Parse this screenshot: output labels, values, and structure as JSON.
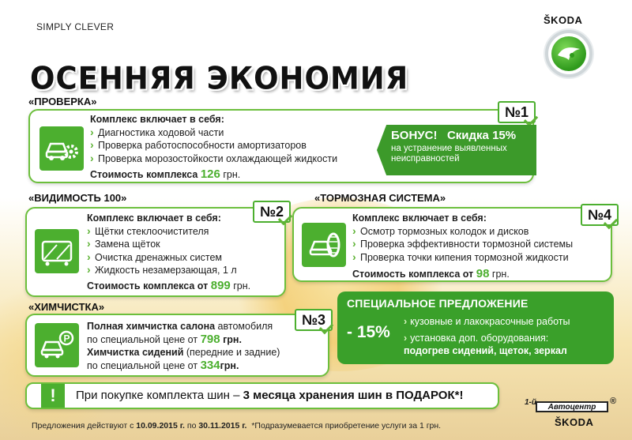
{
  "header": {
    "slogan": "SIMPLY CLEVER",
    "brand": "ŠKODA",
    "title": "ОСЕННЯЯ ЭКОНОМИЯ"
  },
  "offers": [
    {
      "title": "«ПРОВЕРКА»",
      "number": "№1",
      "includes_label": "Комплекс включает в себя:",
      "items": [
        "Диагностика ходовой части",
        "Проверка работоспособности амортизаторов",
        "Проверка морозостойкости охлаждающей жидкости"
      ],
      "price_label": "Стоимость комплекса",
      "price_value": "126",
      "price_unit": "грн.",
      "icon": "car-gear-icon"
    },
    {
      "title": "«ВИДИМОСТЬ 100»",
      "number": "№2",
      "includes_label": "Комплекс включает в себя:",
      "items": [
        "Щётки стеклоочистителя",
        "Замена щёток",
        "Очистка дренажных систем",
        "Жидкость незамерзающая, 1 л"
      ],
      "price_label": "Стоимость комплекса от",
      "price_value": "899",
      "price_unit": "грн.",
      "icon": "windshield-icon"
    },
    {
      "title": "«ТОРМОЗНАЯ СИСТЕМА»",
      "number": "№4",
      "includes_label": "Комплекс включает в себя:",
      "items": [
        "Осмотр тормозных колодок и дисков",
        "Проверка эффективности тормозной системы",
        "Проверка точки кипения тормозной жидкости"
      ],
      "price_label": "Стоимость комплекса от",
      "price_value": "98",
      "price_unit": "грн.",
      "icon": "tire-icon"
    },
    {
      "title": "«ХИМЧИСТКА»",
      "number": "№3",
      "line1_bold": "Полная химчистка салона",
      "line1_rest": " автомобиля",
      "line2_pre": "по специальной цене от ",
      "line2_value": "798",
      "line2_unit": " грн.",
      "line3_bold": "Химчистка сидений",
      "line3_rest": " (передние и задние)",
      "line4_pre": "по специальной цене от ",
      "line4_value": "334",
      "line4_unit": "грн.",
      "icon": "car-parking-icon"
    }
  ],
  "bonus": {
    "label": "БОНУС!",
    "discount": "Скидка 15%",
    "text": "на устранение выявленных неисправностей"
  },
  "special": {
    "title": "СПЕЦИАЛЬНОЕ ПРЕДЛОЖЕНИЕ",
    "percent": "- 15%",
    "line1": "кузовные и лакокрасочные работы",
    "line2": "установка доп. оборудования:",
    "line3": "подогрев сидений, щеток, зеркал"
  },
  "tires": {
    "icon_text": "!",
    "text_pre": "При покупке комплекта шин – ",
    "text_bold": "3 месяца хранения шин в ПОДАРОК*!"
  },
  "footer": {
    "pre": "Предложения действуют с ",
    "date_from": "10.09.2015 г.",
    "mid": " по ",
    "date_to": "30.11.2015 г.",
    "note": "*Подразумевается приобретение услуги за 1 грн."
  },
  "dealer": {
    "prefix": "1-й",
    "name": "Автоцентр",
    "brand": "ŠKODA",
    "mark": "®"
  },
  "colors": {
    "accent": "#4caf2f",
    "dark_green": "#3aa02a"
  }
}
